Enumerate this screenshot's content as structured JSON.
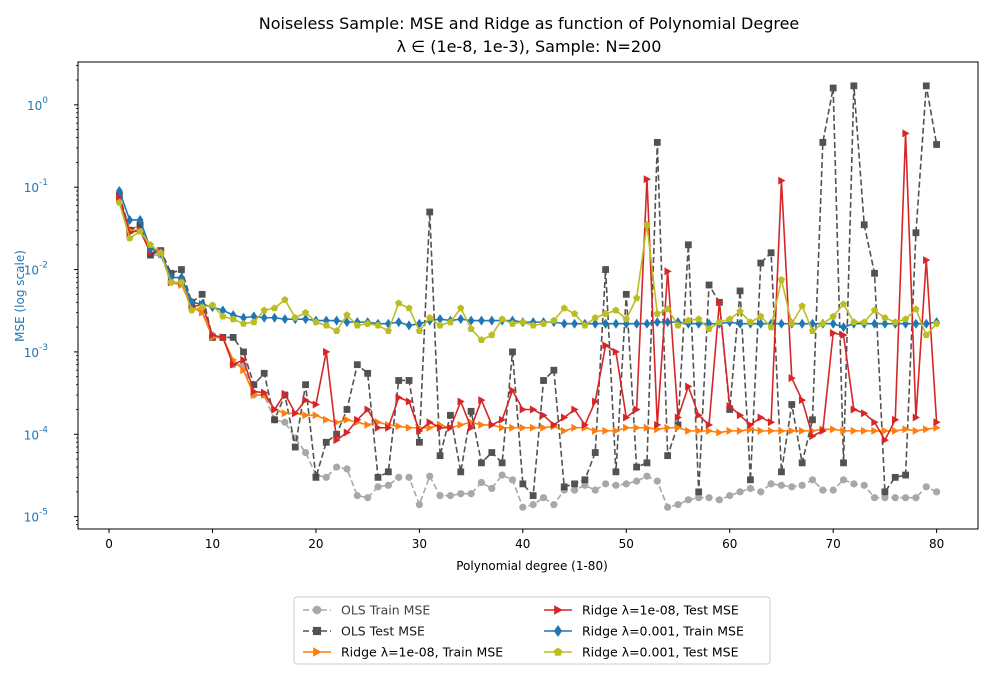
{
  "chart_data": {
    "type": "line",
    "title": "Noiseless Sample: MSE and Ridge as function of Polynomial Degree",
    "subtitle": "λ ∈ (1e-8, 1e-3), Sample: N=200",
    "xlabel": "Polynomial degree (1-80)",
    "ylabel": "MSE (log scale)",
    "y_scale": "log",
    "xlim": [
      -3,
      84
    ],
    "ylim_log10": [
      -5.15,
      0.52
    ],
    "x_ticks": [
      0,
      10,
      20,
      30,
      40,
      50,
      60,
      70,
      80
    ],
    "y_ticks_exp": [
      -5,
      -4,
      -3,
      -2,
      -1,
      0
    ],
    "y_tick_color": "#1f77b4",
    "grid": false,
    "legend_position": "lower-center-outside",
    "legend_columns": 2,
    "x": [
      1,
      2,
      3,
      4,
      5,
      6,
      7,
      8,
      9,
      10,
      11,
      12,
      13,
      14,
      15,
      16,
      17,
      18,
      19,
      20,
      21,
      22,
      23,
      24,
      25,
      26,
      27,
      28,
      29,
      30,
      31,
      32,
      33,
      34,
      35,
      36,
      37,
      38,
      39,
      40,
      41,
      42,
      43,
      44,
      45,
      46,
      47,
      48,
      49,
      50,
      51,
      52,
      53,
      54,
      55,
      56,
      57,
      58,
      59,
      60,
      61,
      62,
      63,
      64,
      65,
      66,
      67,
      68,
      69,
      70,
      71,
      72,
      73,
      74,
      75,
      76,
      77,
      78,
      79,
      80
    ],
    "series": [
      {
        "name": "OLS Train MSE",
        "color": "#8c8c8c",
        "marker": "circle",
        "dash": true,
        "opacity": 0.75,
        "values": [
          0.075,
          0.03,
          0.035,
          0.015,
          0.015,
          0.007,
          0.007,
          0.0035,
          0.0032,
          0.0016,
          0.0015,
          0.0007,
          0.0007,
          0.0003,
          0.0003,
          0.00015,
          0.00014,
          9e-05,
          6e-05,
          3.2e-05,
          3e-05,
          4e-05,
          3.8e-05,
          1.8e-05,
          1.7e-05,
          2.3e-05,
          2.4e-05,
          3e-05,
          3e-05,
          1.4e-05,
          3.1e-05,
          1.8e-05,
          1.8e-05,
          1.9e-05,
          1.9e-05,
          2.6e-05,
          2.2e-05,
          3.2e-05,
          2.8e-05,
          1.3e-05,
          1.4e-05,
          1.7e-05,
          1.4e-05,
          2.1e-05,
          2.1e-05,
          2.4e-05,
          2.1e-05,
          2.5e-05,
          2.4e-05,
          2.5e-05,
          2.7e-05,
          3.1e-05,
          2.7e-05,
          1.3e-05,
          1.4e-05,
          1.6e-05,
          1.7e-05,
          1.7e-05,
          1.6e-05,
          1.8e-05,
          2e-05,
          2.2e-05,
          2e-05,
          2.5e-05,
          2.4e-05,
          2.3e-05,
          2.4e-05,
          2.8e-05,
          2.1e-05,
          2.1e-05,
          2.8e-05,
          2.5e-05,
          2.4e-05,
          1.7e-05,
          1.7e-05,
          1.7e-05,
          1.7e-05,
          1.7e-05,
          2.3e-05,
          2e-05
        ]
      },
      {
        "name": "OLS Test MSE",
        "color": "#404040",
        "marker": "square",
        "dash": true,
        "opacity": 0.9,
        "values": [
          0.08,
          0.03,
          0.035,
          0.015,
          0.017,
          0.009,
          0.01,
          0.004,
          0.005,
          0.0015,
          0.0015,
          0.0015,
          0.001,
          0.0004,
          0.00055,
          0.00015,
          0.0003,
          7e-05,
          0.0004,
          3e-05,
          8e-05,
          0.0001,
          0.0002,
          0.0007,
          0.00055,
          3e-05,
          3.5e-05,
          0.00045,
          0.00045,
          8e-05,
          0.05,
          5.5e-05,
          0.00017,
          3.5e-05,
          0.00019,
          4.5e-05,
          6e-05,
          4.5e-05,
          0.001,
          2.5e-05,
          1.8e-05,
          0.00045,
          0.0006,
          2.3e-05,
          2.5e-05,
          2.8e-05,
          6e-05,
          0.01,
          3.5e-05,
          0.005,
          4e-05,
          4.5e-05,
          0.35,
          5.5e-05,
          0.00013,
          0.02,
          2e-05,
          0.0065,
          0.004,
          0.0002,
          0.0055,
          2.8e-05,
          0.012,
          0.016,
          3.5e-05,
          0.00023,
          4.5e-05,
          0.00015,
          0.35,
          1.6,
          4.5e-05,
          1.7,
          0.035,
          0.009,
          2e-05,
          3e-05,
          3.2e-05,
          0.028,
          1.7,
          0.33
        ]
      },
      {
        "name": "Ridge λ=1e-08, Train MSE",
        "color": "#ff7f0e",
        "marker": "tri-right",
        "dash": false,
        "opacity": 1,
        "values": [
          0.07,
          0.03,
          0.03,
          0.018,
          0.016,
          0.007,
          0.0065,
          0.0035,
          0.003,
          0.0015,
          0.0015,
          0.0008,
          0.0006,
          0.0003,
          0.0003,
          0.0002,
          0.00018,
          0.00018,
          0.00017,
          0.00017,
          0.00015,
          0.00014,
          0.00015,
          0.00014,
          0.00013,
          0.00014,
          0.00013,
          0.000125,
          0.00012,
          0.00012,
          0.00012,
          0.00013,
          0.00012,
          0.00013,
          0.00014,
          0.00013,
          0.00013,
          0.00012,
          0.00012,
          0.00012,
          0.00012,
          0.00012,
          0.000125,
          0.00011,
          0.00012,
          0.00012,
          0.00011,
          0.00011,
          0.00011,
          0.00012,
          0.00012,
          0.00012,
          0.000115,
          0.00012,
          0.00012,
          0.00011,
          0.00011,
          0.00011,
          0.000105,
          0.00011,
          0.00011,
          0.000115,
          0.00011,
          0.00011,
          0.00011,
          0.00011,
          0.00011,
          0.00011,
          0.000115,
          0.000115,
          0.00011,
          0.00011,
          0.00011,
          0.00011,
          0.00011,
          0.00011,
          0.000115,
          0.00011,
          0.000115,
          0.00012
        ]
      },
      {
        "name": "Ridge λ=1e-08, Test MSE",
        "color": "#d62728",
        "marker": "tri-right",
        "dash": false,
        "opacity": 1,
        "values": [
          0.075,
          0.028,
          0.03,
          0.016,
          0.017,
          0.007,
          0.007,
          0.0035,
          0.0038,
          0.0016,
          0.0015,
          0.0007,
          0.0008,
          0.00033,
          0.00032,
          0.0002,
          0.00031,
          0.00018,
          0.00026,
          0.00023,
          0.001,
          8.5e-05,
          0.000105,
          0.00015,
          0.0002,
          0.00012,
          0.00012,
          0.00028,
          0.00025,
          0.00011,
          0.00014,
          0.00012,
          0.00012,
          0.00025,
          0.00012,
          0.00026,
          0.00013,
          0.00015,
          0.00034,
          0.0002,
          0.0002,
          0.00017,
          0.00013,
          0.00016,
          0.0002,
          0.00013,
          0.00025,
          0.0012,
          0.001,
          0.00016,
          0.0002,
          0.125,
          0.00013,
          0.0095,
          0.00016,
          0.00038,
          0.00017,
          0.00013,
          0.004,
          0.00022,
          0.00017,
          0.00013,
          0.00016,
          0.00014,
          0.12,
          0.00048,
          0.00026,
          9.5e-05,
          0.00011,
          0.0017,
          0.0016,
          0.0002,
          0.00018,
          0.00014,
          8.5e-05,
          0.00015,
          0.45,
          0.00016,
          0.013,
          0.00014
        ]
      },
      {
        "name": "Ridge λ=0.001, Train MSE",
        "color": "#1f77b4",
        "marker": "diamond",
        "dash": false,
        "opacity": 1,
        "values": [
          0.09,
          0.04,
          0.04,
          0.018,
          0.016,
          0.008,
          0.008,
          0.004,
          0.0038,
          0.0035,
          0.0032,
          0.0028,
          0.0026,
          0.0027,
          0.0026,
          0.0026,
          0.0025,
          0.0025,
          0.0025,
          0.0024,
          0.0024,
          0.0024,
          0.0023,
          0.0023,
          0.0023,
          0.0022,
          0.0022,
          0.0023,
          0.0021,
          0.0022,
          0.0024,
          0.0025,
          0.0024,
          0.0025,
          0.0024,
          0.0024,
          0.0024,
          0.0024,
          0.0024,
          0.0023,
          0.0023,
          0.0023,
          0.0023,
          0.0022,
          0.0022,
          0.0022,
          0.0022,
          0.0022,
          0.0022,
          0.0022,
          0.0022,
          0.0022,
          0.0023,
          0.0023,
          0.0023,
          0.0022,
          0.0022,
          0.0022,
          0.0022,
          0.0023,
          0.0022,
          0.0022,
          0.0022,
          0.0022,
          0.0022,
          0.0022,
          0.0022,
          0.0022,
          0.0022,
          0.0022,
          0.002,
          0.0022,
          0.0022,
          0.0022,
          0.0022,
          0.0022,
          0.0022,
          0.0022,
          0.0022,
          0.0023
        ]
      },
      {
        "name": "Ridge λ=0.001, Test MSE",
        "color": "#bcbd22",
        "marker": "pentagon",
        "dash": false,
        "opacity": 1,
        "values": [
          0.065,
          0.024,
          0.029,
          0.02,
          0.016,
          0.007,
          0.007,
          0.0032,
          0.0035,
          0.0037,
          0.0027,
          0.0025,
          0.0022,
          0.0023,
          0.0032,
          0.0034,
          0.0043,
          0.0026,
          0.003,
          0.0023,
          0.0021,
          0.0018,
          0.0028,
          0.0021,
          0.0022,
          0.0021,
          0.0018,
          0.0039,
          0.0034,
          0.0018,
          0.0026,
          0.0021,
          0.0023,
          0.0034,
          0.0019,
          0.0014,
          0.0016,
          0.0025,
          0.0022,
          0.0023,
          0.0021,
          0.0022,
          0.0024,
          0.0034,
          0.0029,
          0.0021,
          0.0026,
          0.0029,
          0.0032,
          0.0025,
          0.0045,
          0.035,
          0.0029,
          0.0033,
          0.0021,
          0.0024,
          0.0025,
          0.0019,
          0.0023,
          0.0025,
          0.0031,
          0.0023,
          0.0027,
          0.002,
          0.0075,
          0.0022,
          0.0036,
          0.0018,
          0.0022,
          0.0027,
          0.0038,
          0.0023,
          0.0023,
          0.0032,
          0.0026,
          0.0023,
          0.0025,
          0.0033,
          0.0016,
          0.0022
        ]
      }
    ]
  }
}
